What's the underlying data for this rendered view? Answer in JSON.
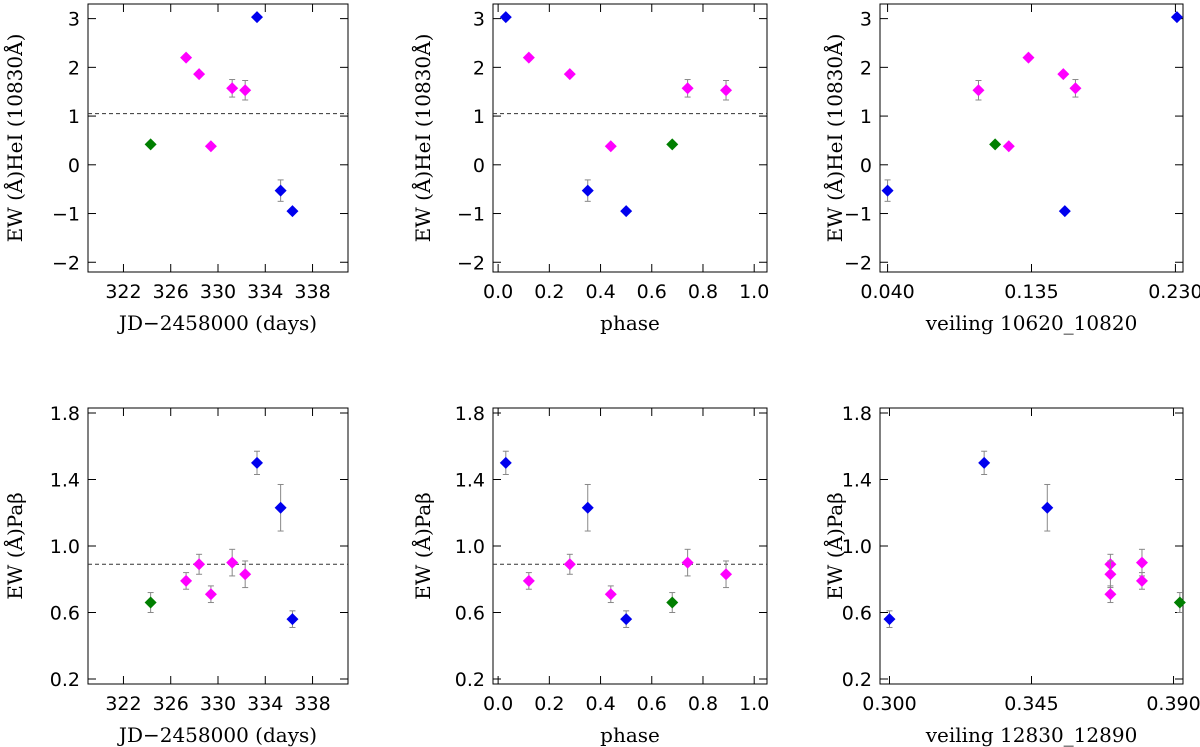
{
  "colors": {
    "blue": "#0000ee",
    "magenta": "#ff00ff",
    "green": "#007f00"
  },
  "chart_data": [
    {
      "type": "scatter",
      "title": "",
      "xlabel": "JD−2458000 (days)",
      "ylabel": "EW (Å)HeI (10830Å)",
      "xlim": [
        319,
        341
      ],
      "ylim": [
        -2.2,
        3.3
      ],
      "xticks": [
        322,
        326,
        330,
        334,
        338
      ],
      "xtick_labels": [
        "322",
        "326",
        "330",
        "334",
        "338"
      ],
      "yticks": [
        -2,
        -1,
        0,
        1,
        2,
        3
      ],
      "ytick_labels": [
        "−2",
        "−1",
        "0",
        "1",
        "2",
        "3"
      ],
      "ref_line": 1.05,
      "points": [
        {
          "x": 324.3,
          "y": 0.42,
          "err": 0.05,
          "group": "green"
        },
        {
          "x": 327.3,
          "y": 2.2,
          "err": 0.05,
          "group": "magenta"
        },
        {
          "x": 328.4,
          "y": 1.86,
          "err": 0.05,
          "group": "magenta"
        },
        {
          "x": 329.4,
          "y": 0.38,
          "err": 0.05,
          "group": "magenta"
        },
        {
          "x": 331.2,
          "y": 1.57,
          "err": 0.18,
          "group": "magenta"
        },
        {
          "x": 332.3,
          "y": 1.53,
          "err": 0.2,
          "group": "magenta"
        },
        {
          "x": 333.3,
          "y": 3.03,
          "err": 0.05,
          "group": "blue"
        },
        {
          "x": 335.3,
          "y": -0.53,
          "err": 0.22,
          "group": "blue"
        },
        {
          "x": 336.3,
          "y": -0.95,
          "err": 0.05,
          "group": "blue"
        }
      ]
    },
    {
      "type": "scatter",
      "title": "",
      "xlabel": "phase",
      "ylabel": "EW (Å)HeI (10830Å)",
      "xlim": [
        -0.02,
        1.05
      ],
      "ylim": [
        -2.2,
        3.3
      ],
      "xticks": [
        0.0,
        0.2,
        0.4,
        0.6,
        0.8,
        1.0
      ],
      "xtick_labels": [
        "0.0",
        "0.2",
        "0.4",
        "0.6",
        "0.8",
        "1.0"
      ],
      "yticks": [
        -2,
        -1,
        0,
        1,
        2,
        3
      ],
      "ytick_labels": [
        "−2",
        "−1",
        "0",
        "1",
        "2",
        "3"
      ],
      "ref_line": 1.05,
      "points": [
        {
          "x": 0.03,
          "y": 3.03,
          "err": 0.05,
          "group": "blue"
        },
        {
          "x": 0.12,
          "y": 2.2,
          "err": 0.05,
          "group": "magenta"
        },
        {
          "x": 0.28,
          "y": 1.86,
          "err": 0.05,
          "group": "magenta"
        },
        {
          "x": 0.35,
          "y": -0.53,
          "err": 0.22,
          "group": "blue"
        },
        {
          "x": 0.44,
          "y": 0.38,
          "err": 0.05,
          "group": "magenta"
        },
        {
          "x": 0.5,
          "y": -0.95,
          "err": 0.05,
          "group": "blue"
        },
        {
          "x": 0.68,
          "y": 0.42,
          "err": 0.05,
          "group": "green"
        },
        {
          "x": 0.74,
          "y": 1.57,
          "err": 0.18,
          "group": "magenta"
        },
        {
          "x": 0.89,
          "y": 1.53,
          "err": 0.2,
          "group": "magenta"
        }
      ]
    },
    {
      "type": "scatter",
      "title": "",
      "xlabel": "veiling 10620_10820",
      "ylabel": "EW (Å)HeI (10830Å)",
      "xlim": [
        0.035,
        0.235
      ],
      "ylim": [
        -2.2,
        3.3
      ],
      "xticks": [
        0.04,
        0.135,
        0.23
      ],
      "xtick_labels": [
        "0.040",
        "0.135",
        "0.230"
      ],
      "yticks": [
        -2,
        -1,
        0,
        1,
        2,
        3
      ],
      "ytick_labels": [
        "−2",
        "−1",
        "0",
        "1",
        "2",
        "3"
      ],
      "ref_line": null,
      "points": [
        {
          "x": 0.04,
          "y": -0.53,
          "err": 0.22,
          "group": "blue"
        },
        {
          "x": 0.1,
          "y": 1.53,
          "err": 0.2,
          "group": "magenta"
        },
        {
          "x": 0.111,
          "y": 0.42,
          "err": 0.05,
          "group": "green"
        },
        {
          "x": 0.12,
          "y": 0.38,
          "err": 0.05,
          "group": "magenta"
        },
        {
          "x": 0.133,
          "y": 2.2,
          "err": 0.05,
          "group": "magenta"
        },
        {
          "x": 0.156,
          "y": 1.86,
          "err": 0.05,
          "group": "magenta"
        },
        {
          "x": 0.157,
          "y": -0.95,
          "err": 0.05,
          "group": "blue"
        },
        {
          "x": 0.164,
          "y": 1.57,
          "err": 0.18,
          "group": "magenta"
        },
        {
          "x": 0.231,
          "y": 3.03,
          "err": 0.05,
          "group": "blue"
        }
      ]
    },
    {
      "type": "scatter",
      "title": "",
      "xlabel": "JD−2458000 (days)",
      "ylabel": "EW (Å)Paβ",
      "xlim": [
        319,
        341
      ],
      "ylim": [
        0.17,
        1.83
      ],
      "xticks": [
        322,
        326,
        330,
        334,
        338
      ],
      "xtick_labels": [
        "322",
        "326",
        "330",
        "334",
        "338"
      ],
      "yticks": [
        0.2,
        0.6,
        1.0,
        1.4,
        1.8
      ],
      "ytick_labels": [
        "0.2",
        "0.6",
        "1.0",
        "1.4",
        "1.8"
      ],
      "ref_line": 0.89,
      "points": [
        {
          "x": 324.3,
          "y": 0.66,
          "err": 0.06,
          "group": "green"
        },
        {
          "x": 327.3,
          "y": 0.79,
          "err": 0.05,
          "group": "magenta"
        },
        {
          "x": 328.4,
          "y": 0.89,
          "err": 0.06,
          "group": "magenta"
        },
        {
          "x": 329.4,
          "y": 0.71,
          "err": 0.05,
          "group": "magenta"
        },
        {
          "x": 331.2,
          "y": 0.9,
          "err": 0.08,
          "group": "magenta"
        },
        {
          "x": 332.3,
          "y": 0.83,
          "err": 0.08,
          "group": "magenta"
        },
        {
          "x": 333.3,
          "y": 1.5,
          "err": 0.07,
          "group": "blue"
        },
        {
          "x": 335.3,
          "y": 1.23,
          "err": 0.14,
          "group": "blue"
        },
        {
          "x": 336.3,
          "y": 0.56,
          "err": 0.05,
          "group": "blue"
        }
      ]
    },
    {
      "type": "scatter",
      "title": "",
      "xlabel": "phase",
      "ylabel": "EW (Å)Paβ",
      "xlim": [
        -0.02,
        1.05
      ],
      "ylim": [
        0.17,
        1.83
      ],
      "xticks": [
        0.0,
        0.2,
        0.4,
        0.6,
        0.8,
        1.0
      ],
      "xtick_labels": [
        "0.0",
        "0.2",
        "0.4",
        "0.6",
        "0.8",
        "1.0"
      ],
      "yticks": [
        0.2,
        0.6,
        1.0,
        1.4,
        1.8
      ],
      "ytick_labels": [
        "0.2",
        "0.6",
        "1.0",
        "1.4",
        "1.8"
      ],
      "ref_line": 0.89,
      "points": [
        {
          "x": 0.03,
          "y": 1.5,
          "err": 0.07,
          "group": "blue"
        },
        {
          "x": 0.12,
          "y": 0.79,
          "err": 0.05,
          "group": "magenta"
        },
        {
          "x": 0.28,
          "y": 0.89,
          "err": 0.06,
          "group": "magenta"
        },
        {
          "x": 0.35,
          "y": 1.23,
          "err": 0.14,
          "group": "blue"
        },
        {
          "x": 0.44,
          "y": 0.71,
          "err": 0.05,
          "group": "magenta"
        },
        {
          "x": 0.5,
          "y": 0.56,
          "err": 0.05,
          "group": "blue"
        },
        {
          "x": 0.68,
          "y": 0.66,
          "err": 0.06,
          "group": "green"
        },
        {
          "x": 0.74,
          "y": 0.9,
          "err": 0.08,
          "group": "magenta"
        },
        {
          "x": 0.89,
          "y": 0.83,
          "err": 0.08,
          "group": "magenta"
        }
      ]
    },
    {
      "type": "scatter",
      "title": "",
      "xlabel": "veiling 12830_12890",
      "ylabel": "EW (Å)Paβ",
      "xlim": [
        0.297,
        0.393
      ],
      "ylim": [
        0.17,
        1.83
      ],
      "xticks": [
        0.3,
        0.345,
        0.39
      ],
      "xtick_labels": [
        "0.300",
        "0.345",
        "0.390"
      ],
      "yticks": [
        0.2,
        0.6,
        1.0,
        1.4,
        1.8
      ],
      "ytick_labels": [
        "0.2",
        "0.6",
        "1.0",
        "1.4",
        "1.8"
      ],
      "ref_line": null,
      "points": [
        {
          "x": 0.3,
          "y": 0.56,
          "err": 0.05,
          "group": "blue"
        },
        {
          "x": 0.33,
          "y": 1.5,
          "err": 0.07,
          "group": "blue"
        },
        {
          "x": 0.35,
          "y": 1.23,
          "err": 0.14,
          "group": "blue"
        },
        {
          "x": 0.37,
          "y": 0.89,
          "err": 0.06,
          "group": "magenta"
        },
        {
          "x": 0.37,
          "y": 0.83,
          "err": 0.08,
          "group": "magenta"
        },
        {
          "x": 0.37,
          "y": 0.71,
          "err": 0.05,
          "group": "magenta"
        },
        {
          "x": 0.38,
          "y": 0.9,
          "err": 0.08,
          "group": "magenta"
        },
        {
          "x": 0.38,
          "y": 0.79,
          "err": 0.05,
          "group": "magenta"
        },
        {
          "x": 0.392,
          "y": 0.66,
          "err": 0.06,
          "group": "green"
        }
      ]
    }
  ]
}
